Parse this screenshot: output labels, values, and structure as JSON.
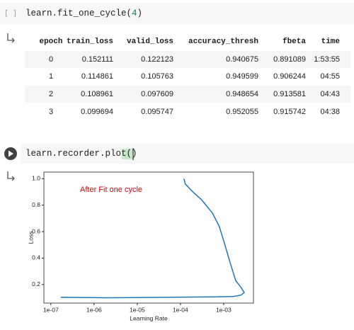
{
  "cells": [
    {
      "prompt": "[ ]",
      "code_tokens": [
        "learn.fit_one_cycle(",
        "4",
        ")"
      ]
    },
    {
      "code_tokens": [
        "learn.recorder.plot",
        "(",
        ")"
      ]
    }
  ],
  "table": {
    "columns": [
      "epoch",
      "train_loss",
      "valid_loss",
      "accuracy_thresh",
      "fbeta",
      "time"
    ],
    "rows": [
      [
        "0",
        "0.152111",
        "0.122123",
        "0.940675",
        "0.891089",
        "1:53:55"
      ],
      [
        "1",
        "0.114861",
        "0.105763",
        "0.949599",
        "0.906244",
        "04:55"
      ],
      [
        "2",
        "0.108961",
        "0.097609",
        "0.948654",
        "0.913581",
        "04:43"
      ],
      [
        "3",
        "0.099694",
        "0.095747",
        "0.952055",
        "0.915742",
        "04:38"
      ]
    ]
  },
  "chart_data": {
    "type": "line",
    "annotation": "After Fit one cycle",
    "x_label": "Learning Rate",
    "y_label": "Loss",
    "x_scale": "log",
    "color": "#1f77b4",
    "annotation_color": "#e00000",
    "x": [
      1.7e-07,
      1.9e-06,
      1.26e-05,
      0.0001,
      0.00055,
      0.0017,
      0.0025,
      0.003,
      0.0025,
      0.0019,
      0.0014,
      0.00107,
      0.00079,
      0.00055,
      0.00031,
      0.00018,
      0.00013,
      0.00012
    ],
    "values": [
      0.104,
      0.1,
      0.102,
      0.105,
      0.107,
      0.11,
      0.12,
      0.14,
      0.18,
      0.23,
      0.37,
      0.5,
      0.64,
      0.74,
      0.84,
      0.91,
      0.96,
      1.0
    ],
    "xlim": [
      6.9e-08,
      0.0049
    ],
    "ylim": [
      0.06,
      1.05
    ],
    "xticks": [
      {
        "value": 1e-07,
        "label": "1e-07"
      },
      {
        "value": 1e-06,
        "label": "1e-06"
      },
      {
        "value": 1e-05,
        "label": "1e-05"
      },
      {
        "value": 0.0001,
        "label": "1e-04"
      },
      {
        "value": 0.001,
        "label": "1e-03"
      }
    ],
    "yticks": [
      0.2,
      0.4,
      0.6,
      0.8,
      {
        "value": 1.0,
        "label": "1.0"
      }
    ]
  }
}
